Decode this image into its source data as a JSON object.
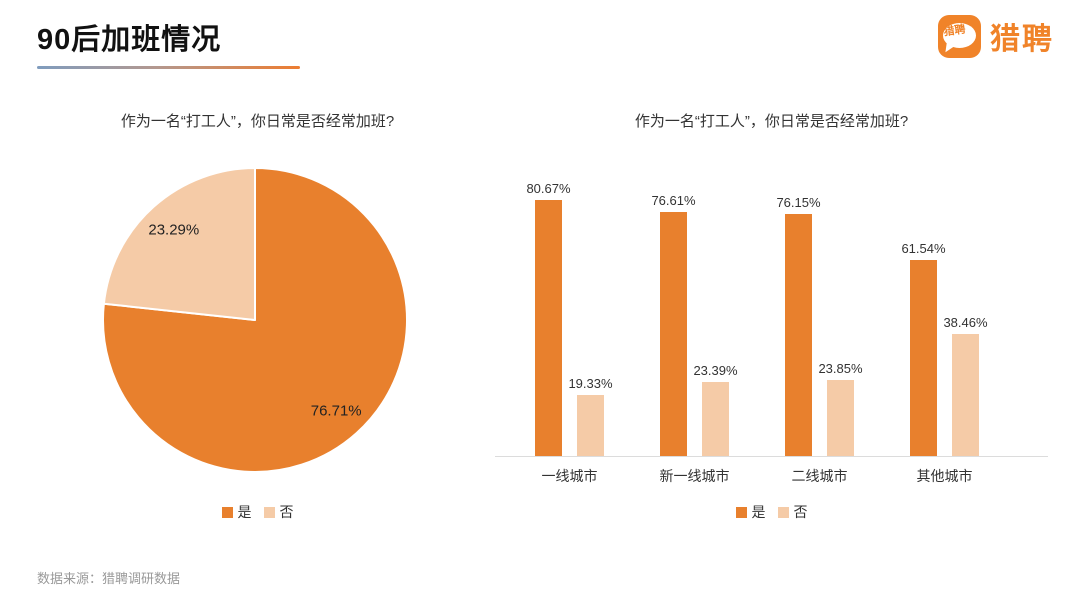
{
  "page": {
    "title": "90后加班情况",
    "footer": "数据来源：猎聘调研数据",
    "background": "#FFFFFF"
  },
  "brand": {
    "name": "猎聘",
    "icon_bubble_text": "猎聘",
    "color": "#F08329"
  },
  "colors": {
    "yes": "#E8802D",
    "no": "#F5CBA7",
    "underline_gradient_left": "#7F9CBE",
    "underline_gradient_right": "#ED7D31",
    "axis_line": "#DCDCDC",
    "footer_text": "#999999",
    "title_text": "#111111"
  },
  "legend": {
    "items": [
      {
        "label": "是",
        "color": "#E8802D"
      },
      {
        "label": "否",
        "color": "#F5CBA7"
      }
    ]
  },
  "chart_data": [
    {
      "type": "pie",
      "title": "作为一名“打工人”，你日常是否经常加班?",
      "start_angle_deg": 0,
      "direction": "clockwise",
      "legend_position": "bottom",
      "slices": [
        {
          "label": "是",
          "value": 76.71,
          "display": "76.71%",
          "color": "#E8802D"
        },
        {
          "label": "否",
          "value": 23.29,
          "display": "23.29%",
          "color": "#F5CBA7"
        }
      ]
    },
    {
      "type": "bar",
      "title": "作为一名“打工人”，你日常是否经常加班?",
      "categories": [
        "一线城市",
        "新一线城市",
        "二线城市",
        "其他城市"
      ],
      "series": [
        {
          "name": "是",
          "color": "#E8802D",
          "values": [
            80.67,
            76.61,
            76.15,
            61.54
          ],
          "labels": [
            "80.67%",
            "76.61%",
            "76.15%",
            "61.54%"
          ]
        },
        {
          "name": "否",
          "color": "#F5CBA7",
          "values": [
            19.33,
            23.39,
            23.85,
            38.46
          ],
          "labels": [
            "19.33%",
            "23.39%",
            "23.85%",
            "38.46%"
          ]
        }
      ],
      "ylim": [
        0,
        100
      ],
      "y_axis_visible": false,
      "grid": false,
      "legend_position": "bottom"
    }
  ]
}
